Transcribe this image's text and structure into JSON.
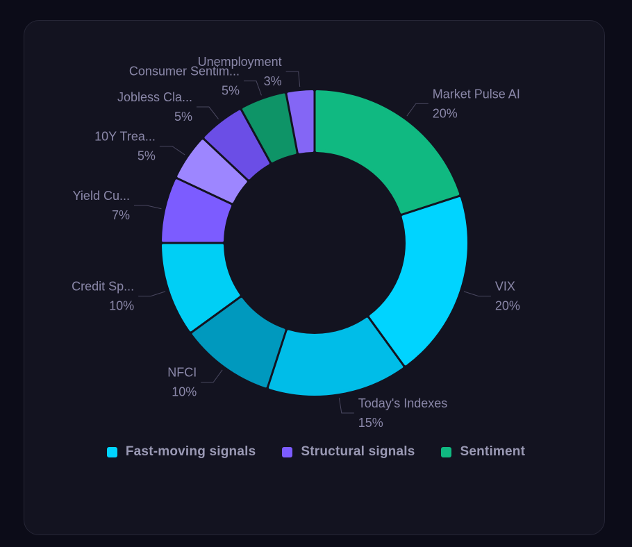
{
  "chart_data": {
    "type": "pie",
    "variant": "donut",
    "title": "",
    "slices": [
      {
        "label": "Market Pulse AI",
        "value": 20,
        "value_label": "20%",
        "group": "Sentiment",
        "color": "#10b981"
      },
      {
        "label": "VIX",
        "value": 20,
        "value_label": "20%",
        "group": "Fast-moving signals",
        "color": "#00d4ff"
      },
      {
        "label": "Today's Indexes",
        "value": 15,
        "value_label": "15%",
        "group": "Fast-moving signals",
        "color": "#00bde8"
      },
      {
        "label": "NFCI",
        "value": 10,
        "value_label": "10%",
        "group": "Fast-moving signals",
        "color": "#0099be"
      },
      {
        "label": "Credit Sp...",
        "value": 10,
        "value_label": "10%",
        "group": "Fast-moving signals",
        "color": "#00cff5"
      },
      {
        "label": "Yield Cu...",
        "value": 7,
        "value_label": "7%",
        "group": "Structural signals",
        "color": "#7c5cff"
      },
      {
        "label": "10Y Trea...",
        "value": 5,
        "value_label": "5%",
        "group": "Structural signals",
        "color": "#9d86ff"
      },
      {
        "label": "Jobless Cla...",
        "value": 5,
        "value_label": "5%",
        "group": "Structural signals",
        "color": "#6b4ee6"
      },
      {
        "label": "Consumer Sentim...",
        "value": 5,
        "value_label": "5%",
        "group": "Sentiment",
        "color": "#0e9467"
      },
      {
        "label": "Unemployment",
        "value": 3,
        "value_label": "3%",
        "group": "Structural signals",
        "color": "#8466f5"
      }
    ],
    "legend": {
      "position": "bottom",
      "entries": [
        {
          "name": "Fast-moving signals",
          "color": "#00d4ff"
        },
        {
          "name": "Structural signals",
          "color": "#7c5cff"
        },
        {
          "name": "Sentiment",
          "color": "#10b981"
        }
      ]
    }
  }
}
